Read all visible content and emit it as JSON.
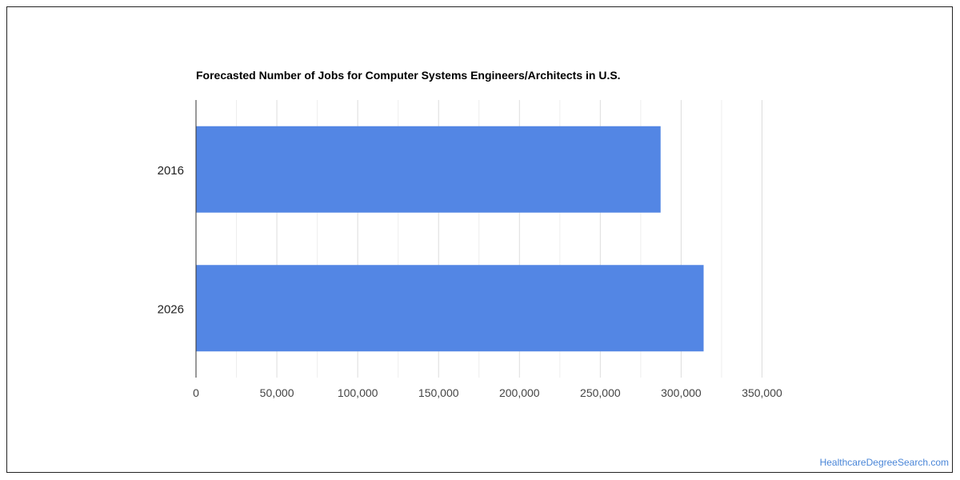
{
  "chart_data": {
    "type": "bar",
    "orientation": "horizontal",
    "title": "Forecasted Number of Jobs for Computer Systems Engineers/Architects in U.S.",
    "categories": [
      "2016",
      "2026"
    ],
    "values": [
      287300,
      313900
    ],
    "xlim": [
      0,
      350000
    ],
    "x_ticks": [
      0,
      50000,
      100000,
      150000,
      200000,
      250000,
      300000,
      350000
    ],
    "x_tick_labels": [
      "0",
      "50,000",
      "100,000",
      "150,000",
      "200,000",
      "250,000",
      "300,000",
      "350,000"
    ],
    "grid": true,
    "bar_color": "#5386e4",
    "xlabel": "",
    "ylabel": ""
  },
  "footer": {
    "source": "HealthcareDegreeSearch.com"
  },
  "colors": {
    "gridline": "#dddddd",
    "minor_gridline": "#eeeeee",
    "axis_line": "#333333",
    "tick_label": "#444444",
    "footer_text": "#4a86d8"
  }
}
